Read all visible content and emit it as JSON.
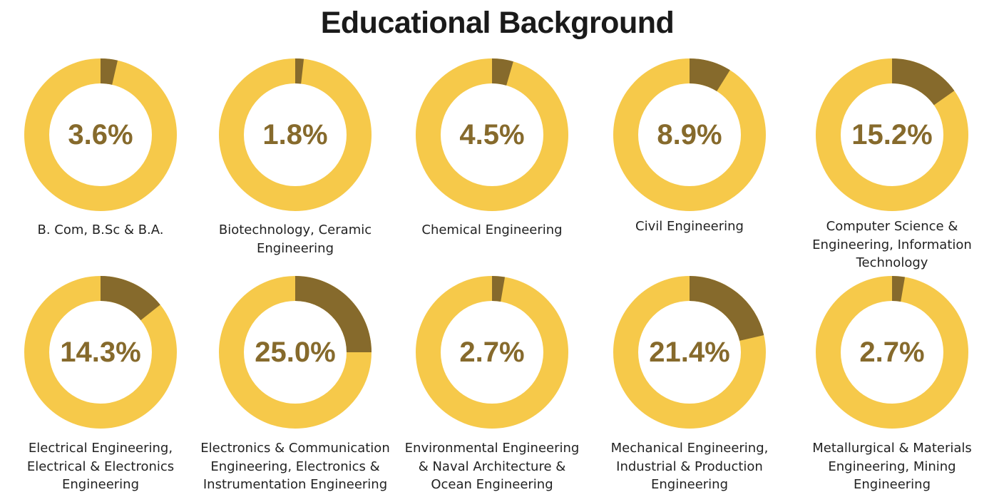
{
  "title": "Educational Background",
  "colors": {
    "track": "#f6c94a",
    "share": "#866a2c",
    "text": "#866a2c"
  },
  "chart_data": {
    "type": "pie",
    "subtype": "donut",
    "title": "Educational Background",
    "unit": "%",
    "items": [
      {
        "label": "B. Com, B.Sc & B.A.",
        "value": 3.6,
        "display": "3.6%"
      },
      {
        "label": "Biotechnology, Ceramic\nEngineering",
        "value": 1.8,
        "display": "1.8%"
      },
      {
        "label": "Chemical Engineering",
        "value": 4.5,
        "display": "4.5%"
      },
      {
        "label": "Civil Engineering",
        "value": 8.9,
        "display": "8.9%"
      },
      {
        "label": "Computer Science &\nEngineering, Information\nTechnology",
        "value": 15.2,
        "display": "15.2%"
      },
      {
        "label": "Electrical Engineering,\nElectrical & Electronics\nEngineering",
        "value": 14.3,
        "display": "14.3%"
      },
      {
        "label": "Electronics & Communication\nEngineering, Electronics &\nInstrumentation Engineering",
        "value": 25.0,
        "display": "25.0%"
      },
      {
        "label": "Environmental Engineering\n& Naval Architecture &\nOcean Engineering",
        "value": 2.7,
        "display": "2.7%"
      },
      {
        "label": "Mechanical Engineering,\nIndustrial & Production\nEngineering",
        "value": 21.4,
        "display": "21.4%"
      },
      {
        "label": "Metallurgical & Materials\nEngineering, Mining\nEngineering",
        "value": 2.7,
        "display": "2.7%"
      }
    ]
  }
}
